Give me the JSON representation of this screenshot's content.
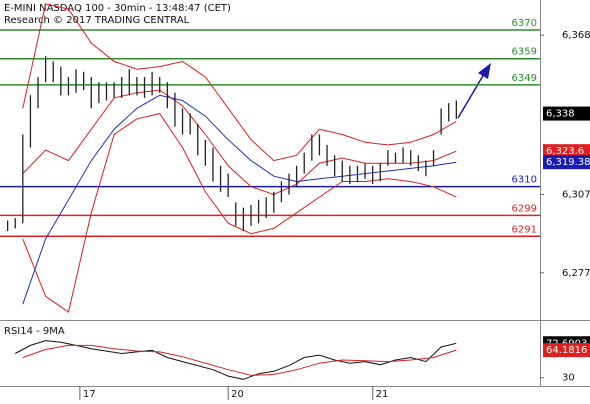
{
  "chart_data": [
    {
      "type": "ohlc",
      "title": "E-MINI NASDAQ 100 - 30min - 13:48:47 (CET)",
      "subtitle": "Research © 2017 TRADING CENTRAL",
      "xlim": [
        0,
        71
      ],
      "ylim": [
        6259.7,
        6381.5
      ],
      "yticks": [
        {
          "value": 6368,
          "label": "6,368"
        },
        {
          "value": 6307,
          "label": "6,307"
        },
        {
          "value": 6277,
          "label": "6,277"
        }
      ],
      "xticks": [
        {
          "value": 10.5,
          "label": "17"
        },
        {
          "value": 30,
          "label": "20"
        },
        {
          "value": 49,
          "label": "21"
        }
      ],
      "bar_color": "#222222",
      "x": [
        1,
        2,
        3,
        4,
        5,
        6,
        7,
        8,
        9,
        10,
        11,
        12,
        13,
        14,
        15,
        16,
        17,
        18,
        19,
        20,
        21,
        22,
        23,
        24,
        25,
        26,
        27,
        28,
        29,
        30,
        31,
        32,
        33,
        34,
        35,
        36,
        37,
        38,
        39,
        40,
        41,
        42,
        43,
        44,
        45,
        46,
        47,
        48,
        49,
        50,
        51,
        52,
        53,
        54,
        55,
        56,
        57,
        58,
        59,
        60
      ],
      "high": [
        6297,
        6298,
        6330,
        6345,
        6352,
        6360,
        6358,
        6356,
        6352,
        6355,
        6354,
        6352,
        6350,
        6350,
        6350,
        6352,
        6355,
        6352,
        6352,
        6354,
        6352,
        6350,
        6346,
        6340,
        6338,
        6334,
        6328,
        6325,
        6318,
        6315,
        6304,
        6302,
        6303,
        6305,
        6306,
        6308,
        6312,
        6315,
        6318,
        6323,
        6330,
        6330,
        6326,
        6322,
        6320,
        6318,
        6318,
        6319,
        6318,
        6319,
        6324,
        6323,
        6325,
        6324,
        6322,
        6320,
        6324,
        6340,
        6342,
        6343
      ],
      "low": [
        6293,
        6294,
        6296,
        6325,
        6340,
        6350,
        6350,
        6345,
        6345,
        6346,
        6347,
        6340,
        6342,
        6343,
        6344,
        6344,
        6345,
        6345,
        6344,
        6345,
        6346,
        6340,
        6333,
        6330,
        6330,
        6322,
        6318,
        6312,
        6308,
        6306,
        6295,
        6293,
        6295,
        6296,
        6298,
        6300,
        6304,
        6307,
        6310,
        6315,
        6320,
        6322,
        6318,
        6314,
        6312,
        6311,
        6312,
        6313,
        6311,
        6312,
        6318,
        6319,
        6319,
        6318,
        6316,
        6314,
        6318,
        6330,
        6335,
        6336
      ],
      "lines": [
        {
          "color": "#d42020",
          "x": [
            3,
            6,
            9,
            12,
            15,
            18,
            21,
            24,
            27,
            30,
            33,
            36,
            39,
            42,
            45,
            48,
            51,
            54,
            57,
            60
          ],
          "values": [
            6340,
            6380,
            6378,
            6365,
            6358,
            6355,
            6356,
            6358,
            6352,
            6340,
            6328,
            6320,
            6322,
            6332,
            6330,
            6327,
            6326,
            6327,
            6330,
            6335
          ]
        },
        {
          "color": "#d42020",
          "x": [
            3,
            6,
            9,
            12,
            15,
            18,
            21,
            24,
            27,
            30,
            33,
            36,
            39,
            42,
            45,
            48,
            51,
            54,
            57,
            60
          ],
          "values": [
            6290,
            6268,
            6262,
            6300,
            6330,
            6336,
            6338,
            6325,
            6308,
            6296,
            6292,
            6294,
            6300,
            6306,
            6312,
            6312,
            6313,
            6312,
            6310,
            6306
          ]
        },
        {
          "color": "#d42020",
          "x": [
            3,
            6,
            9,
            12,
            15,
            18,
            21,
            24,
            27,
            30,
            33,
            36,
            39,
            42,
            45,
            48,
            51,
            54,
            57,
            60
          ],
          "values": [
            6315,
            6324,
            6320,
            6332,
            6344,
            6346,
            6347,
            6341,
            6330,
            6318,
            6310,
            6307,
            6311,
            6319,
            6321,
            6319,
            6319,
            6319,
            6320,
            6323.6
          ]
        },
        {
          "color": "#2030b0",
          "x": [
            3,
            6,
            9,
            12,
            15,
            18,
            21,
            24,
            27,
            30,
            33,
            36,
            39,
            42,
            45,
            48,
            51,
            54,
            57,
            60
          ],
          "values": [
            6265,
            6290,
            6305,
            6320,
            6332,
            6340,
            6345,
            6343,
            6337,
            6328,
            6320,
            6314,
            6312,
            6313,
            6314,
            6315,
            6316,
            6317,
            6318,
            6319.38
          ]
        }
      ],
      "levels": [
        {
          "value": 6370,
          "color": "#2e8b2e"
        },
        {
          "value": 6359,
          "color": "#2e8b2e"
        },
        {
          "value": 6349,
          "color": "#2e8b2e"
        },
        {
          "value": 6310,
          "color": "#1a1aa8"
        },
        {
          "value": 6299,
          "color": "#e02020"
        },
        {
          "value": 6291,
          "color": "#e02020"
        }
      ],
      "price_labels": [
        {
          "value": 6338,
          "label": "6,338",
          "color": "#000000"
        },
        {
          "value": 6323.6,
          "label": "6,323.6",
          "color": "#e02020"
        },
        {
          "value": 6319.38,
          "label": "6,319.38",
          "color": "#1a1ab8"
        }
      ]
    },
    {
      "type": "line",
      "title": "RSI14 - 9MA",
      "xlim": [
        0,
        71
      ],
      "ylim": [
        21,
        99
      ],
      "yticks": [
        30
      ],
      "lines": [
        {
          "color": "#111111",
          "x": [
            2,
            4,
            6,
            8,
            10,
            12,
            14,
            16,
            18,
            20,
            22,
            24,
            26,
            28,
            30,
            32,
            34,
            36,
            38,
            40,
            42,
            44,
            46,
            48,
            50,
            52,
            54,
            56,
            58,
            60
          ],
          "values": [
            60,
            70,
            76,
            74,
            70,
            66,
            63,
            60,
            62,
            64,
            55,
            50,
            45,
            40,
            32,
            28,
            35,
            38,
            45,
            55,
            58,
            52,
            48,
            50,
            46,
            52,
            55,
            50,
            68,
            72.6903
          ]
        },
        {
          "color": "#d42020",
          "x": [
            3,
            6,
            9,
            12,
            15,
            18,
            21,
            24,
            27,
            30,
            33,
            36,
            39,
            42,
            45,
            48,
            51,
            54,
            57,
            60
          ],
          "values": [
            55,
            65,
            70,
            70,
            66,
            63,
            62,
            56,
            48,
            40,
            33,
            34,
            40,
            48,
            52,
            51,
            50,
            52,
            55,
            64.1816
          ]
        }
      ],
      "price_labels": [
        {
          "value": 72.6903,
          "label": "72.6903",
          "color": "#000000"
        },
        {
          "value": 64.1816,
          "label": "64.1816",
          "color": "#e02020"
        }
      ]
    }
  ]
}
